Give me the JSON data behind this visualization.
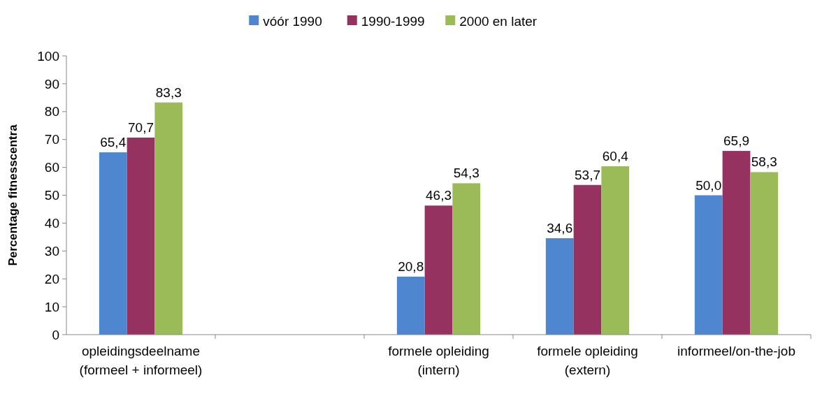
{
  "chart_data": {
    "type": "bar",
    "ylabel": "Percentage fitnesscentra",
    "categories": [
      "opleidingsdeelname\n(formeel + informeel)",
      null,
      "formele opleiding\n(intern)",
      "formele opleiding\n(extern)",
      "informeel/on-the-job"
    ],
    "series": [
      {
        "name": "vóór 1990",
        "color": "#4f86d0",
        "values": [
          65.4,
          null,
          20.8,
          34.6,
          50.0
        ],
        "value_labels": [
          "65,4",
          null,
          "20,8",
          "34,6",
          "50,0"
        ]
      },
      {
        "name": "1990-1999",
        "color": "#953260",
        "values": [
          70.7,
          null,
          46.3,
          53.7,
          65.9
        ],
        "value_labels": [
          "70,7",
          null,
          "46,3",
          "53,7",
          "65,9"
        ]
      },
      {
        "name": "2000 en later",
        "color": "#9bbb59",
        "values": [
          83.3,
          null,
          54.3,
          60.4,
          58.3
        ],
        "value_labels": [
          "83,3",
          null,
          "54,3",
          "60,4",
          "58,3"
        ]
      }
    ],
    "ylim": [
      0,
      100
    ],
    "yticks": [
      0,
      10,
      20,
      30,
      40,
      50,
      60,
      70,
      80,
      90,
      100
    ],
    "grid": false,
    "legend": "top"
  }
}
